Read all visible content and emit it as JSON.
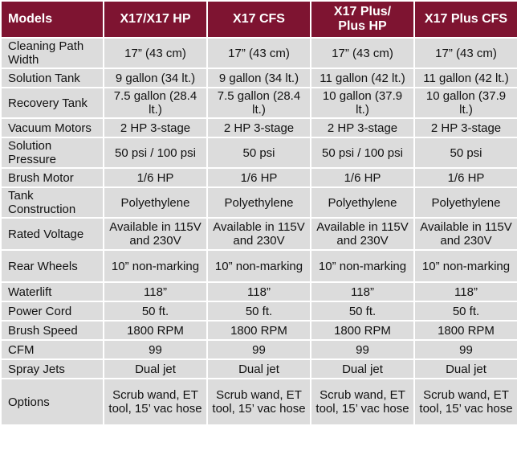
{
  "header": {
    "models": "Models",
    "col1": "X17/X17 HP",
    "col2": "X17 CFS",
    "col3": "X17 Plus/\nPlus HP",
    "col4": "X17 Plus CFS"
  },
  "rows": [
    {
      "label": "Cleaning Path Width",
      "values": [
        "17” (43 cm)",
        "17” (43 cm)",
        "17” (43 cm)",
        "17” (43 cm)"
      ]
    },
    {
      "label": "Solution Tank",
      "values": [
        "9 gallon (34 lt.)",
        "9 gallon (34 lt.)",
        "11 gallon (42 lt.)",
        "11 gallon (42 lt.)"
      ]
    },
    {
      "label": "Recovery Tank",
      "values": [
        "7.5 gallon (28.4 lt.)",
        "7.5 gallon (28.4 lt.)",
        "10 gallon (37.9 lt.)",
        "10 gallon (37.9 lt.)"
      ]
    },
    {
      "label": "Vacuum Motors",
      "values": [
        "2 HP 3-stage",
        "2 HP 3-stage",
        "2 HP 3-stage",
        "2 HP 3-stage"
      ]
    },
    {
      "label": "Solution Pressure",
      "values": [
        "50 psi / 100 psi",
        "50 psi",
        "50 psi / 100 psi",
        "50 psi"
      ]
    },
    {
      "label": "Brush Motor",
      "values": [
        "1/6 HP",
        "1/6 HP",
        "1/6 HP",
        "1/6 HP"
      ]
    },
    {
      "label": "Tank Construction",
      "values": [
        "Polyethylene",
        "Polyethylene",
        "Polyethylene",
        "Polyethylene"
      ]
    },
    {
      "label": "Rated Voltage",
      "values": [
        "Available in 115V and 230V",
        "Available in 115V and 230V",
        "Available in 115V and 230V",
        "Available in 115V and 230V"
      ]
    },
    {
      "label": "Rear Wheels",
      "values": [
        "10” non-marking",
        "10” non-marking",
        "10” non-marking",
        "10” non-marking"
      ]
    },
    {
      "label": "Waterlift",
      "values": [
        "118”",
        "118”",
        "118”",
        "118”"
      ]
    },
    {
      "label": "Power Cord",
      "values": [
        "50 ft.",
        "50 ft.",
        "50 ft.",
        "50 ft."
      ]
    },
    {
      "label": "Brush Speed",
      "values": [
        "1800 RPM",
        "1800 RPM",
        "1800 RPM",
        "1800 RPM"
      ]
    },
    {
      "label": "CFM",
      "values": [
        "99",
        "99",
        "99",
        "99"
      ]
    },
    {
      "label": "Spray Jets",
      "values": [
        "Dual jet",
        "Dual jet",
        "Dual jet",
        "Dual jet"
      ]
    },
    {
      "label": "Options",
      "values": [
        "Scrub wand, ET tool, 15’ vac hose",
        "Scrub wand, ET tool, 15’ vac hose",
        "Scrub wand, ET tool, 15’ vac hose",
        "Scrub wand, ET tool, 15’ vac hose"
      ]
    }
  ],
  "colors": {
    "header_bg": "#7e1431",
    "header_text": "#ffffff",
    "cell_bg": "#dcdcdc"
  }
}
